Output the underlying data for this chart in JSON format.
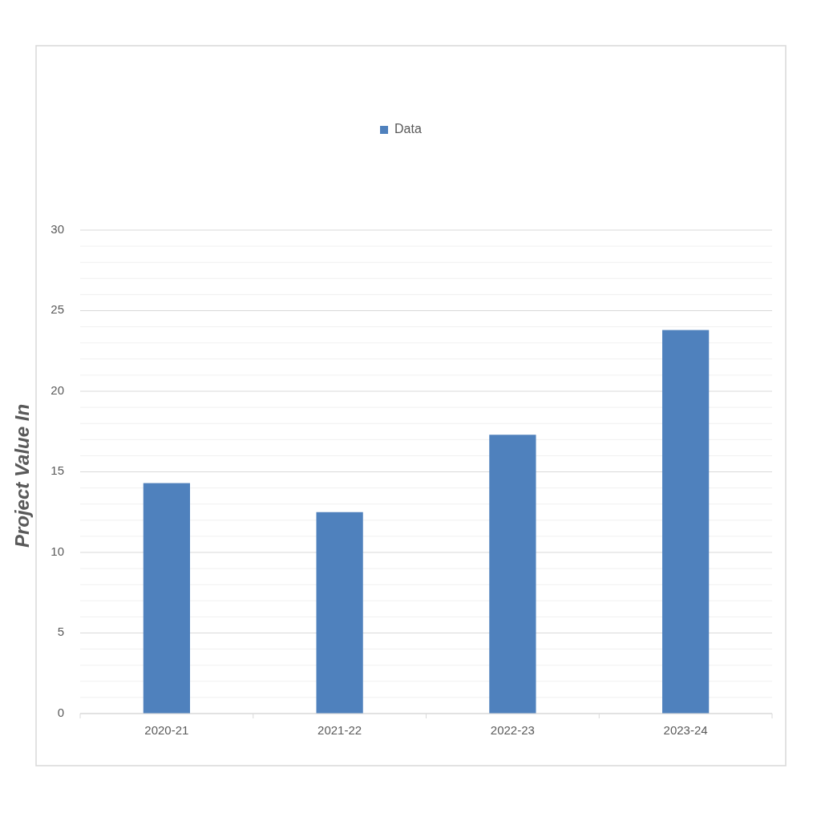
{
  "chart_data": {
    "type": "bar",
    "ylabel": "Project Value In",
    "categories": [
      "2020-21",
      "2021-22",
      "2022-23",
      "2023-24"
    ],
    "series": [
      {
        "name": "Data",
        "color": "#4f81bd",
        "values": [
          14.3,
          12.5,
          17.3,
          23.8
        ]
      }
    ],
    "ylim": [
      0,
      30
    ],
    "yticks": [
      0,
      {
        "value": 1,
        "label": null
      },
      {
        "value": 2,
        "label": null
      },
      {
        "value": 3,
        "label": null
      },
      {
        "value": 4,
        "label": null
      },
      5,
      {
        "value": 6,
        "label": null
      },
      {
        "value": 7,
        "label": null
      },
      {
        "value": 8,
        "label": null
      },
      {
        "value": 9,
        "label": null
      },
      10,
      {
        "value": 11,
        "label": null
      },
      {
        "value": 12,
        "label": null
      },
      {
        "value": 13,
        "label": null
      },
      {
        "value": 14,
        "label": null
      },
      15,
      {
        "value": 16,
        "label": null
      },
      {
        "value": 17,
        "label": null
      },
      {
        "value": 18,
        "label": null
      },
      {
        "value": 19,
        "label": null
      },
      20,
      {
        "value": 21,
        "label": null
      },
      {
        "value": 22,
        "label": null
      },
      {
        "value": 23,
        "label": null
      },
      {
        "value": 24,
        "label": null
      },
      25,
      {
        "value": 26,
        "label": null
      },
      {
        "value": 27,
        "label": null
      },
      {
        "value": 28,
        "label": null
      },
      {
        "value": 29,
        "label": null
      },
      30
    ],
    "grid": "y",
    "legend": "top"
  }
}
